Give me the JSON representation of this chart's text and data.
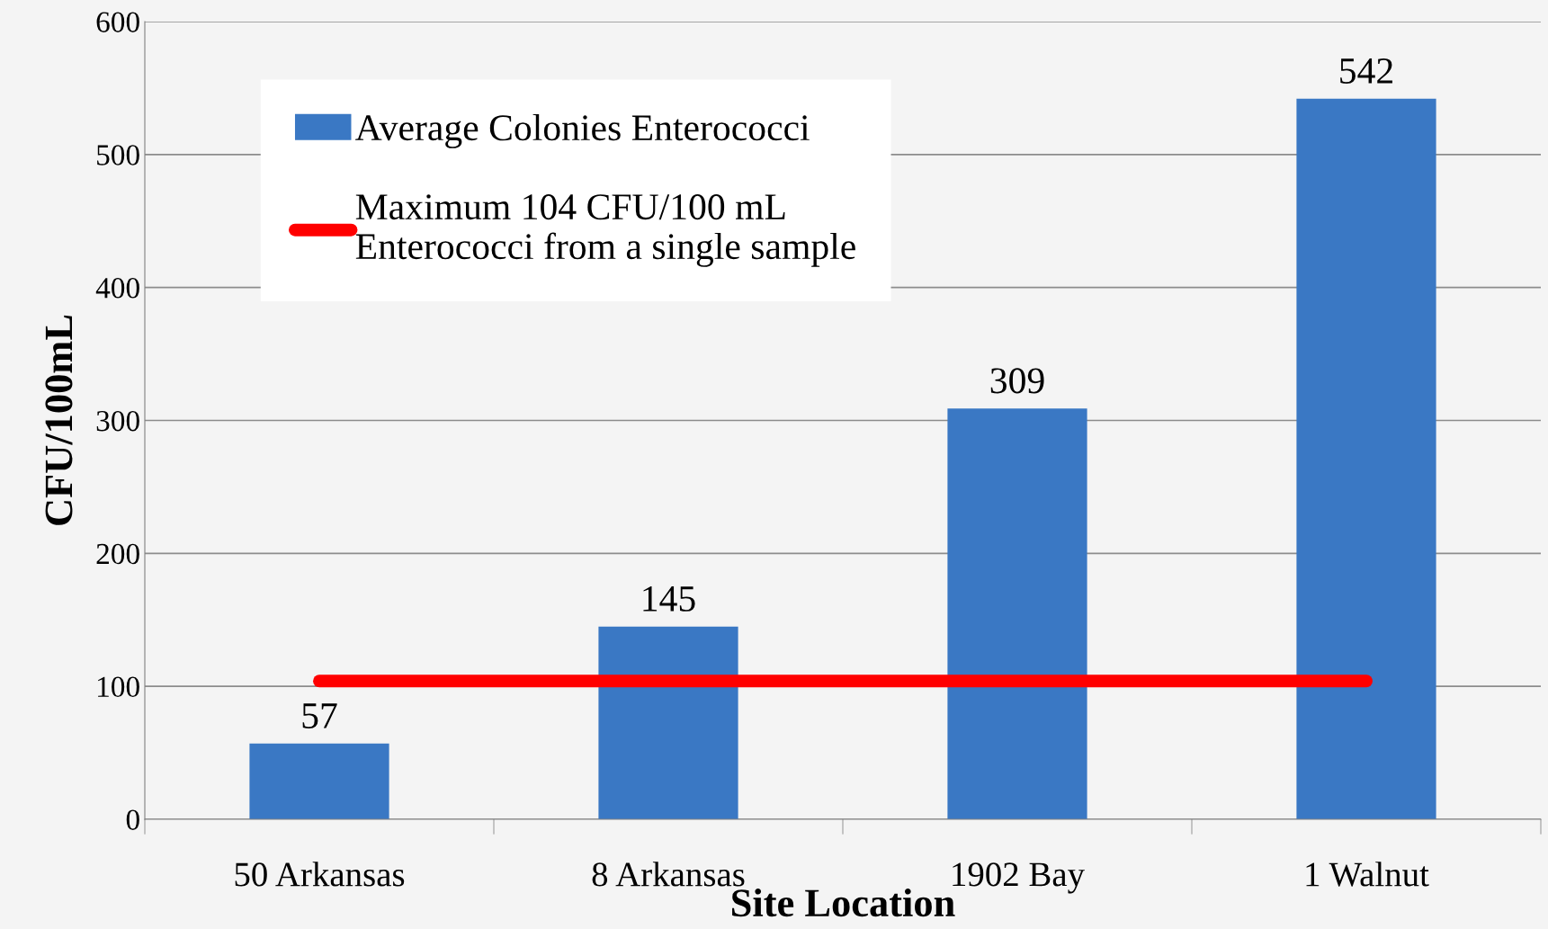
{
  "chart_data": {
    "type": "bar",
    "xlabel": "Site Location",
    "ylabel": "CFU/100mL",
    "categories": [
      "50 Arkansas",
      "8 Arkansas",
      "1902 Bay",
      "1 Walnut"
    ],
    "series": [
      {
        "name": "Average Colonies Enterococci",
        "color": "#3a78c4",
        "values": [
          57,
          145,
          309,
          542
        ],
        "value_labels": [
          "57",
          "145",
          "309",
          "542"
        ]
      },
      {
        "name": "Maximum 104 CFU/100 mL\nEnterococci from a single sample",
        "type": "line",
        "color": "#ff0000",
        "values": [
          104,
          104,
          104,
          104
        ]
      }
    ],
    "ylim": [
      0,
      600
    ],
    "yticks": [
      0,
      100,
      200,
      300,
      400,
      500,
      600
    ],
    "grid": "y",
    "legend": "top left"
  }
}
